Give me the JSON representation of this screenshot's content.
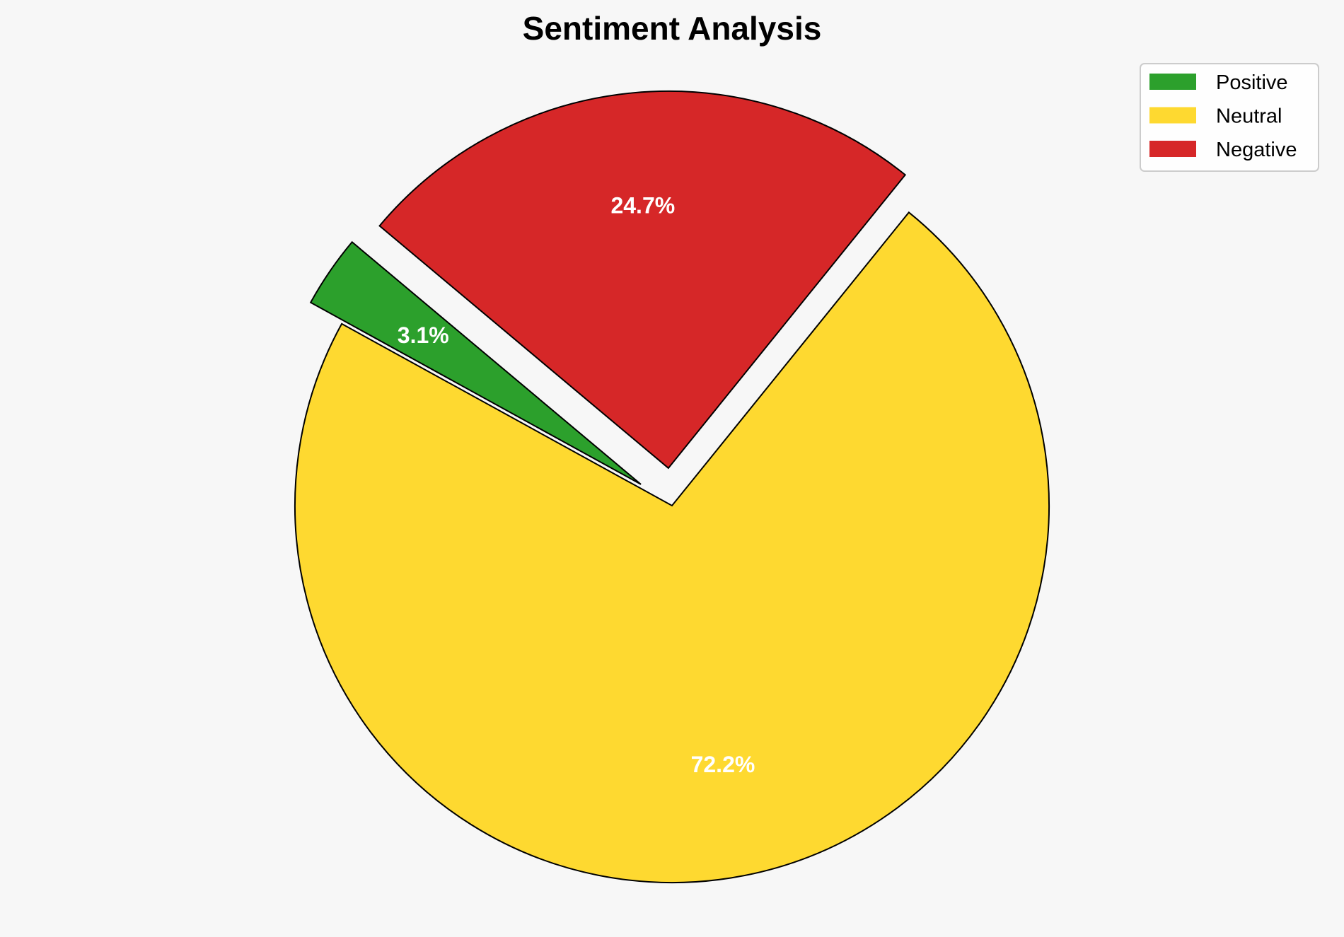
{
  "chart_data": {
    "type": "pie",
    "title": "Sentiment Analysis",
    "categories": [
      "Positive",
      "Neutral",
      "Negative"
    ],
    "values": [
      3.1,
      72.2,
      24.7
    ],
    "labels": [
      "3.1%",
      "72.2%",
      "24.7%"
    ],
    "colors": [
      "#2ca02c",
      "#fed930",
      "#d62728"
    ],
    "explode": [
      0.1,
      0,
      0.1
    ],
    "start_angle": 140,
    "legend_position": "top-right"
  }
}
